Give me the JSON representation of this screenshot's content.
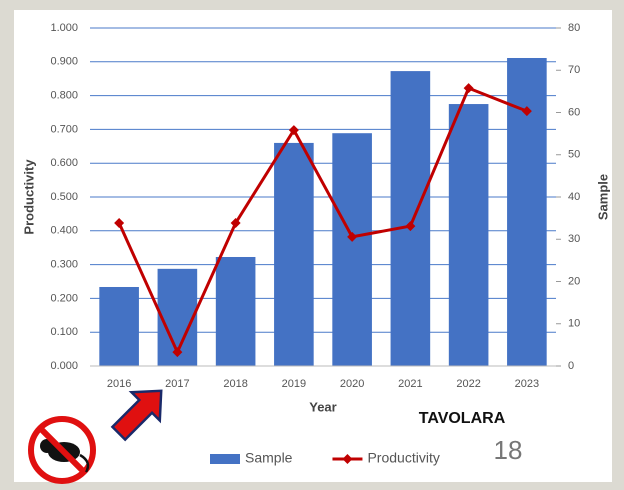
{
  "chart_data": {
    "type": "bar",
    "categories": [
      "2016",
      "2017",
      "2018",
      "2019",
      "2020",
      "2021",
      "2022",
      "2023"
    ],
    "series": [
      {
        "name": "Sample",
        "type": "bar",
        "axis": "y2",
        "color": "#4472c4",
        "values": [
          18.7,
          23,
          25.8,
          52.8,
          55.1,
          69.8,
          62,
          72.9
        ]
      },
      {
        "name": "Productivity",
        "type": "line",
        "axis": "y",
        "color": "#c00000",
        "values": [
          0.423,
          0.041,
          0.423,
          0.698,
          0.382,
          0.414,
          0.822,
          0.754
        ]
      }
    ],
    "x_label": "Year",
    "y_label": "Productivity",
    "y2_label": "Sample",
    "ylim": [
      0,
      1
    ],
    "yticks": [
      {
        "value": 0,
        "label": "0.000"
      },
      {
        "value": 0.1,
        "label": "0.100"
      },
      {
        "value": 0.2,
        "label": "0.200"
      },
      {
        "value": 0.3,
        "label": "0.300"
      },
      {
        "value": 0.4,
        "label": "0.400"
      },
      {
        "value": 0.5,
        "label": "0.500"
      },
      {
        "value": 0.6,
        "label": "0.600"
      },
      {
        "value": 0.7,
        "label": "0.700"
      },
      {
        "value": 0.8,
        "label": "0.800"
      },
      {
        "value": 0.9,
        "label": "0.900"
      },
      {
        "value": 1,
        "label": "1.000"
      }
    ],
    "y2lim": [
      0,
      80
    ],
    "y2ticks": [
      0,
      10,
      20,
      30,
      40,
      50,
      60,
      70,
      80
    ],
    "grid": true,
    "grid_color": "#4a7ac9",
    "legend": "bottom",
    "annotations": [
      "TAVOLARA",
      "18"
    ]
  }
}
